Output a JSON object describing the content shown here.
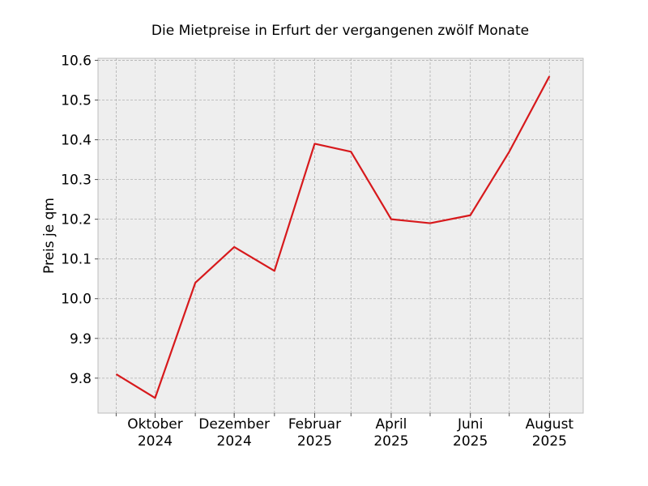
{
  "chart_data": {
    "type": "line",
    "title": "Die Mietpreise in Erfurt der vergangenen zwölf Monate",
    "xlabel": "",
    "ylabel": "Preis je qm",
    "x": [
      "2024-09",
      "2024-10",
      "2024-11",
      "2024-12",
      "2025-01",
      "2025-02",
      "2025-03",
      "2025-04",
      "2025-05",
      "2025-06",
      "2025-07",
      "2025-08"
    ],
    "series": [
      {
        "color": "#d7191c",
        "values": [
          9.81,
          9.75,
          10.04,
          10.13,
          10.07,
          10.39,
          10.37,
          10.2,
          10.19,
          10.21,
          10.37,
          10.56
        ]
      }
    ],
    "x_ticks": [
      {
        "month": "2024-10",
        "line1": "Oktober",
        "line2": "2024"
      },
      {
        "month": "2024-12",
        "line1": "Dezember",
        "line2": "2024"
      },
      {
        "month": "2025-02",
        "line1": "Februar",
        "line2": "2025"
      },
      {
        "month": "2025-04",
        "line1": "April",
        "line2": "2025"
      },
      {
        "month": "2025-06",
        "line1": "Juni",
        "line2": "2025"
      },
      {
        "month": "2025-08",
        "line1": "August",
        "line2": "2025"
      }
    ],
    "y_ticks": [
      9.8,
      9.9,
      10.0,
      10.1,
      10.2,
      10.3,
      10.4,
      10.5,
      10.6
    ],
    "y_tick_labels": [
      "9.8",
      "9.9",
      "10.0",
      "10.1",
      "10.2",
      "10.3",
      "10.4",
      "10.5",
      "10.6"
    ],
    "xlim": [
      "2024-08-18",
      "2025-08-27"
    ],
    "ylim": [
      9.712,
      10.605
    ],
    "grid": true,
    "background": "#eeeeee"
  }
}
